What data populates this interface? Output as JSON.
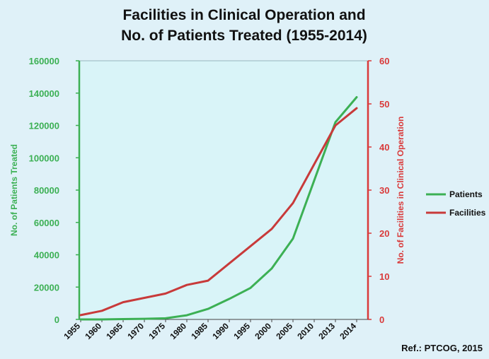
{
  "chart_data": {
    "type": "line",
    "title_line1": "Facilities in Clinical Operation and",
    "title_line2": "No. of Patients Treated (1955-2014)",
    "xlabel": "",
    "categories": [
      "1955",
      "1960",
      "1965",
      "1970",
      "1975",
      "1980",
      "1985",
      "1990",
      "1995",
      "2000",
      "2005",
      "2010",
      "2013",
      "2014"
    ],
    "y_left": {
      "label": "No. of Patients Treated",
      "ylim": [
        0,
        160000
      ],
      "ticks": [
        "0",
        "20000",
        "40000",
        "60000",
        "80000",
        "100000",
        "120000",
        "140000",
        "160000"
      ],
      "color": "#3cb054"
    },
    "y_right": {
      "label": "No. of Facilities in Clinical Operation",
      "ylim": [
        0,
        60
      ],
      "ticks": [
        "0",
        "10",
        "20",
        "30",
        "40",
        "50",
        "60"
      ],
      "color": "#d93a3a"
    },
    "series": [
      {
        "name": "Patients",
        "axis": "left",
        "color": "#3cb054",
        "values": [
          0,
          0,
          200,
          400,
          700,
          2600,
          6500,
          12700,
          19500,
          31500,
          50000,
          86000,
          122000,
          137500
        ]
      },
      {
        "name": "Facilities",
        "axis": "right",
        "color": "#c83a3a",
        "values": [
          1,
          2,
          4,
          5,
          6,
          8,
          9,
          13,
          17,
          21,
          27,
          36,
          45,
          49
        ]
      }
    ],
    "grid": false,
    "legend_position": "right",
    "source_note": "Ref.: PTCOG, 2015"
  },
  "colors": {
    "page_background": "#dff1f8",
    "plot_background": "#d9f4f8",
    "title": "#111111"
  }
}
